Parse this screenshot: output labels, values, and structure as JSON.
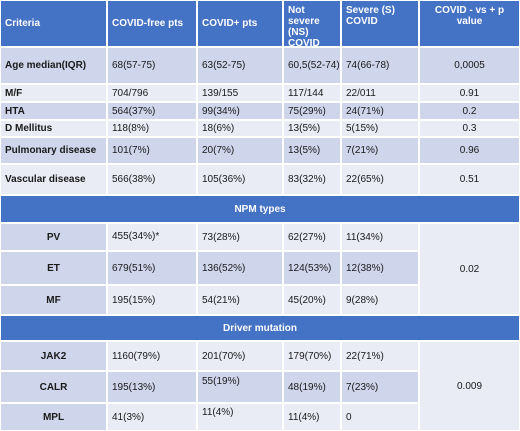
{
  "header": {
    "criteria": "Criteria",
    "covid_free": "COVID-free pts",
    "covid_pos": "COVID+ pts",
    "not_severe": "Not severe (NS) COVID",
    "severe": "Severe (S) COVID",
    "pvalue": "COVID - vs + p value"
  },
  "rows": [
    {
      "label": "Age median(IQR)",
      "free": "68(57-75)",
      "pos": "63(52-75)",
      "ns": "60,5(52-74)",
      "s": "74(66-78)",
      "p": "0,0005"
    },
    {
      "label": "M/F",
      "free": "704/796",
      "pos": "139/155",
      "ns": "117/144",
      "s": "22/011",
      "p": "0.91"
    },
    {
      "label": "HTA",
      "free": "564(37%)",
      "pos": "99(34%)",
      "ns": "75(29%)",
      "s": "24(71%)",
      "p": "0.2"
    },
    {
      "label": "D Mellitus",
      "free": "118(8%)",
      "pos": "18(6%)",
      "ns": "13(5%)",
      "s": "5(15%)",
      "p": "0.3"
    },
    {
      "label": "Pulmonary disease",
      "free": "101(7%)",
      "pos": "20(7%)",
      "ns": "13(5%)",
      "s": "7(21%)",
      "p": "0.96"
    },
    {
      "label": "Vascular disease",
      "free": "566(38%)",
      "pos": "105(36%)",
      "ns": "83(32%)",
      "s": "22(65%)",
      "p": "0.51"
    }
  ],
  "npm_section": {
    "title": "NPM types",
    "rows": [
      {
        "label": "PV",
        "free": "455(34%)*",
        "pos": "73(28%)",
        "ns": "62(27%)",
        "s": "11(34%)"
      },
      {
        "label": "ET",
        "free": "679(51%)",
        "pos": "136(52%)",
        "ns": "124(53%)",
        "s": "12(38%)"
      },
      {
        "label": "MF",
        "free": "195(15%)",
        "pos": "54(21%)",
        "ns": "45(20%)",
        "s": "9(28%)"
      }
    ],
    "p": "0.02"
  },
  "driver_section": {
    "title": "Driver mutation",
    "rows": [
      {
        "label": "JAK2",
        "free": "1160(79%)",
        "pos": "201(70%)",
        "ns": "179(70%)",
        "s": "22(71%)"
      },
      {
        "label": "CALR",
        "free": "195(13%)",
        "pos": "55(19%)",
        "ns": "48(19%)",
        "s": "7(23%)"
      },
      {
        "label": "MPL",
        "free": "41(3%)",
        "pos": "11(4%)",
        "ns": "11(4%)",
        "s": "0"
      }
    ],
    "p": "0.009"
  }
}
